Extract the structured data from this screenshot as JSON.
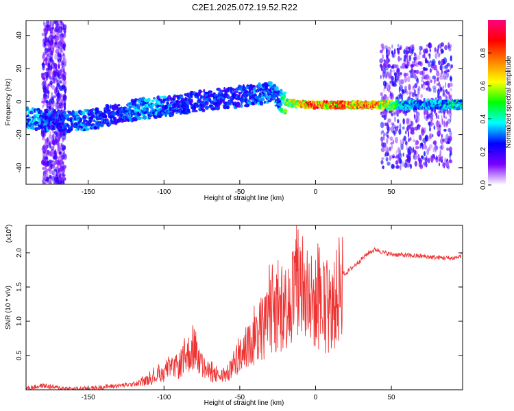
{
  "title": "C2E1.2025.072.19.52.R22",
  "chart_data": [
    {
      "type": "heatmap",
      "description_role": "spectrogram",
      "xlabel": "Height of straight line (km)",
      "ylabel": "Frequency (Hz)",
      "xlim": [
        -191,
        97
      ],
      "ylim": [
        -50,
        49
      ],
      "x_ticks": [
        -150,
        -100,
        -50,
        0,
        50
      ],
      "y_ticks": [
        40,
        20,
        0,
        -20,
        -40
      ],
      "x_tick_labels": [
        "-150",
        "-100",
        "-50",
        "0",
        "50"
      ],
      "y_tick_labels": [
        "40",
        "20",
        "0",
        "-20",
        "-40"
      ],
      "colorbar": {
        "label": "Normalized spectral amplitude",
        "range": [
          0.0,
          1.0
        ],
        "ticks": [
          0.0,
          0.2,
          0.4,
          0.6,
          0.8
        ],
        "tick_labels": [
          "0.0",
          "0.2",
          "0.4",
          "0.6",
          "0.8"
        ],
        "colors": [
          "#ffffff",
          "#7a00ff",
          "#0000ff",
          "#00ffff",
          "#00ff00",
          "#ffff00",
          "#ff8000",
          "#ff0000",
          "#ff0080"
        ]
      },
      "ridge": {
        "x": [
          -191,
          -180,
          -170,
          -160,
          -150,
          -140,
          -130,
          -120,
          -110,
          -100,
          -90,
          -80,
          -70,
          -60,
          -50,
          -40,
          -30,
          -25,
          -20,
          0,
          20,
          40,
          60,
          80,
          97
        ],
        "y": [
          -10,
          -11,
          -12,
          -12,
          -11,
          -9,
          -7,
          -5,
          -4,
          -3,
          -2,
          0,
          1,
          2,
          3,
          4,
          6,
          2,
          -1,
          -2,
          -2,
          -2,
          -2,
          -2,
          -2
        ],
        "amplitude": [
          0.4,
          0.35,
          0.3,
          0.35,
          0.35,
          0.3,
          0.3,
          0.35,
          0.4,
          0.35,
          0.3,
          0.3,
          0.3,
          0.3,
          0.3,
          0.35,
          0.35,
          0.35,
          0.6,
          0.95,
          0.85,
          0.9,
          0.4,
          0.4,
          0.5
        ]
      },
      "scatter_bands": [
        {
          "x_range": [
            -180,
            -165
          ],
          "y_range": [
            -50,
            49
          ],
          "amplitude": 0.2
        },
        {
          "x_range": [
            43,
            90
          ],
          "y_range": [
            -40,
            35
          ],
          "amplitude": 0.22
        }
      ]
    },
    {
      "type": "line",
      "xlabel": "Height of straight line (km)",
      "ylabel": "SNR (10 * v/v)",
      "y_multiplier": "(x10",
      "y_multiplier_exp": "4",
      "xlim": [
        -191,
        97
      ],
      "ylim": [
        0,
        24000
      ],
      "x_ticks": [
        -150,
        -100,
        -50,
        0,
        50
      ],
      "y_ticks": [
        5000,
        10000,
        15000,
        20000
      ],
      "x_tick_labels": [
        "-150",
        "-100",
        "-50",
        "0",
        "50"
      ],
      "y_tick_labels": [
        "0.5",
        "1.0",
        "1.5",
        "2.0"
      ],
      "series": [
        {
          "color": "#ee3333",
          "x": [
            -191,
            -180,
            -170,
            -160,
            -150,
            -140,
            -130,
            -120,
            -115,
            -110,
            -100,
            -90,
            -85,
            -80,
            -75,
            -70,
            -65,
            -60,
            -55,
            -50,
            -45,
            -40,
            -35,
            -30,
            -25,
            -20,
            -15,
            -12,
            -10,
            -8,
            -5,
            -3,
            0,
            5,
            10,
            15,
            17,
            20,
            25,
            30,
            35,
            40,
            45,
            50,
            55,
            60,
            70,
            80,
            90,
            95,
            97
          ],
          "y": [
            200,
            600,
            300,
            100,
            150,
            400,
            600,
            800,
            1000,
            1500,
            2500,
            3500,
            5000,
            6000,
            3500,
            2500,
            2000,
            2000,
            3000,
            4500,
            6000,
            7500,
            9000,
            10500,
            11000,
            12000,
            14000,
            15000,
            15500,
            13000,
            12500,
            13000,
            12500,
            11500,
            11000,
            14000,
            17000,
            17000,
            18000,
            19000,
            20000,
            20500,
            20000,
            19800,
            19700,
            19600,
            19500,
            19300,
            19200,
            19400,
            20000
          ]
        }
      ]
    }
  ]
}
